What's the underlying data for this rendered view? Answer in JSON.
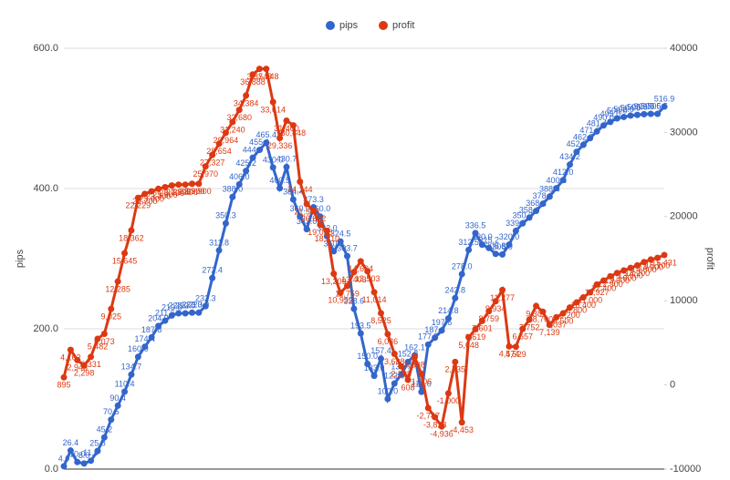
{
  "chart_data": {
    "type": "line",
    "ylim": [
      0,
      600
    ],
    "yticks": [
      {
        "value": 0,
        "label": "0.0"
      },
      {
        "value": 200,
        "label": "200.0"
      },
      {
        "value": 400,
        "label": "400.0"
      },
      {
        "value": 600,
        "label": "600.0"
      }
    ],
    "y2lim": [
      -10000,
      40000
    ],
    "y2ticks": [
      -10000,
      0,
      10000,
      20000,
      30000,
      40000
    ],
    "ylabel": "pips",
    "y2label": "profit",
    "grid": true,
    "legend": "top",
    "series": [
      {
        "name": "pips",
        "color": "#3366cc",
        "values": [
          4.0,
          26.4,
          10.0,
          8.0,
          11.9,
          25.8,
          45.2,
          70.5,
          90.4,
          110.4,
          134.7,
          160.0,
          174.4,
          187.8,
          204.0,
          211.6,
          219.0,
          222.0,
          222.0,
          223.0,
          223.0,
          232.3,
          272.4,
          311.8,
          350.3,
          388.0,
          406.0,
          425.2,
          444.0,
          455.1,
          465.4,
          430.0,
          400.5,
          430.7,
          384.4,
          360.0,
          342.0,
          373.3,
          360.0,
          332.0,
          310.5,
          324.5,
          303.7,
          228.6,
          193.5,
          150.0,
          133.0,
          157.4,
          100.0,
          122.0,
          134.7,
          152.8,
          162.1,
          110.0,
          177.5,
          187.3,
          197.6,
          214.8,
          243.8,
          278.0,
          312.5,
          336.5,
          320.0,
          315.2,
          306.8,
          306.0,
          320.0,
          339.7,
          350.3,
          358.6,
          368.1,
          378.3,
          388.4,
          400.5,
          412.0,
          434.2,
          452.3,
          462.3,
          471.9,
          481.4,
          490.0,
          495.0,
          500.0,
          502.0,
          504.0,
          505.0,
          506.0,
          506.5,
          506.5,
          516.9
        ],
        "value_labels": [
          "4.0",
          "26.4",
          "10.0",
          "8.0",
          "11.9",
          "25.8",
          "45.2",
          "70.5",
          "90.4",
          "110.4",
          "134.7",
          "160.0",
          "174.4",
          "187.8",
          "204.0",
          "211.6",
          "219.0",
          "222.0",
          "222.0",
          "223.0",
          "223.0",
          "232.3",
          "272.4",
          "311.8",
          "350.3",
          "388.0",
          "406.0",
          "425.2",
          "444.0",
          "455.1",
          "465.4",
          "430.0",
          "400.5",
          "430.7",
          "384.4",
          "360.0",
          "342.0",
          "373.3",
          "360.0",
          "332.0",
          "310.5",
          "324.5",
          "303.7",
          "228.6",
          "193.5",
          "150.0",
          "133.0",
          "157.4",
          "100.0",
          "122.0",
          "134.7",
          "152.8",
          "162.1",
          "110.0",
          "177.5",
          "187.3",
          "197.6",
          "214.8",
          "243.8",
          "278.0",
          "312.5",
          "336.5",
          "320.0",
          "315.2",
          "306.8",
          "306.0",
          "320.0",
          "339.7",
          "350.3",
          "358.6",
          "368.1",
          "378.3",
          "388.4",
          "400.5",
          "412.0",
          "434.2",
          "452.3",
          "462.3",
          "471.9",
          "481.4",
          "490.0",
          "495.0",
          "500.0",
          "502.0",
          "504.0",
          "505.0",
          "506.0",
          "506.5",
          "506.5",
          "516.9"
        ]
      },
      {
        "name": "profit",
        "color": "#dc3912",
        "axis": "y2",
        "values": [
          895,
          4162,
          2948,
          2298,
          3331,
          5482,
          6073,
          9025,
          12285,
          15645,
          18362,
          22229,
          22700,
          23000,
          23300,
          23500,
          23700,
          23800,
          23800,
          23900,
          23900,
          25970,
          27327,
          28654,
          29964,
          31240,
          32680,
          34384,
          36888,
          37548,
          37548,
          33614,
          29336,
          31400,
          30848,
          24144,
          21500,
          20692,
          19036,
          18310,
          13209,
          10959,
          11759,
          13403,
          14694,
          13503,
          11014,
          8525,
          6036,
          3688,
          2208,
          608,
          3308,
          1306,
          -2747,
          -3828,
          -4936,
          -1000,
          2735,
          -4453,
          5648,
          6619,
          7601,
          8759,
          9934,
          11277,
          4574,
          4529,
          6657,
          7752,
          9381,
          8700,
          7139,
          8037,
          8500,
          9200,
          9800,
          10400,
          11000,
          11927,
          12400,
          12900,
          13300,
          13600,
          13900,
          14200,
          14600,
          14900,
          15100,
          15431
        ],
        "value_labels": [
          "895",
          "4,162",
          "2,948",
          "2,298",
          "3,331",
          "5,482",
          "6,073",
          "9,025",
          "12,285",
          "15,645",
          "18,362",
          "22,229",
          "22,700",
          "23,000",
          "23,300",
          "23,500",
          "23,700",
          "23,800",
          "23,800",
          "23,900",
          "23,900",
          "25,970",
          "27,327",
          "28,654",
          "29,964",
          "31,240",
          "32,680",
          "34,384",
          "36,888",
          "37,548",
          "37,548",
          "33,614",
          "29,336",
          "31,400",
          "30,848",
          "24,144",
          "21,500",
          "20,692",
          "19,036",
          "18,310",
          "13,209",
          "10,959",
          "11,759",
          "13,403",
          "14,694",
          "13,503",
          "11,014",
          "8,525",
          "6,036",
          "3,688",
          "2,208",
          "608",
          "3,308",
          "1,306",
          "-2,747",
          "-3,828",
          "-4,936",
          "-1,000",
          "2,735",
          "-4,453",
          "5,648",
          "6,619",
          "7,601",
          "8,759",
          "9,934",
          "11,277",
          "4,574",
          "4,529",
          "6,657",
          "7,752",
          "9,381",
          "8,700",
          "7,139",
          "8,037",
          "8,500",
          "9,200",
          "9,800",
          "10,400",
          "11,000",
          "11,927",
          "12,400",
          "12,900",
          "13,300",
          "13,600",
          "13,900",
          "14,200",
          "14,600",
          "14,900",
          "15,100",
          "15,431"
        ]
      }
    ]
  }
}
